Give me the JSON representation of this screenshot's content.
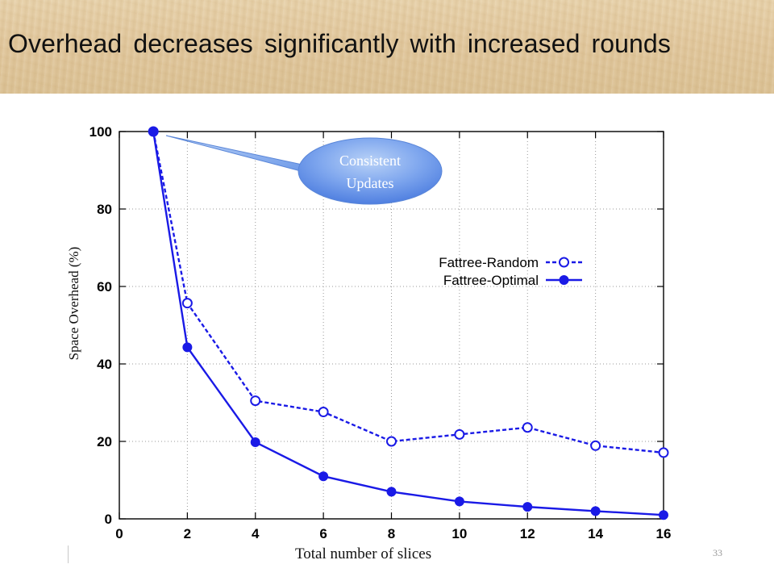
{
  "slide": {
    "title": "Overhead decreases significantly with increased rounds",
    "page_number": "33"
  },
  "callout": {
    "line1": "Consistent",
    "line2": "Updates"
  },
  "colors": {
    "series": "#1a1ae6",
    "axis": "#000000",
    "grid": "#999999",
    "callout_fill": "#5b8ee8",
    "callout_fill_light": "#a9c6f5"
  },
  "chart_data": {
    "type": "line",
    "xlabel": "Total number of slices",
    "ylabel": "Space Overhead (%)",
    "xlim": [
      0,
      16
    ],
    "ylim": [
      0,
      100
    ],
    "xticks": [
      "0",
      "2",
      "4",
      "6",
      "8",
      "10",
      "12",
      "14",
      "16"
    ],
    "yticks": [
      "0",
      "20",
      "40",
      "60",
      "80",
      "100"
    ],
    "grid": true,
    "legend_position": "center-right",
    "series": [
      {
        "name": "Fattree-Random",
        "style": "dashed-open-circle",
        "x": [
          1,
          2,
          4,
          6,
          8,
          10,
          12,
          14,
          16
        ],
        "y": [
          100,
          55.7,
          30.5,
          27.6,
          20.0,
          21.8,
          23.6,
          18.9,
          17.1
        ]
      },
      {
        "name": "Fattree-Optimal",
        "style": "solid-filled-circle",
        "x": [
          1,
          2,
          4,
          6,
          8,
          10,
          12,
          14,
          16
        ],
        "y": [
          100,
          44.3,
          19.8,
          11.0,
          7.0,
          4.5,
          3.1,
          2.0,
          1.0
        ]
      }
    ]
  }
}
